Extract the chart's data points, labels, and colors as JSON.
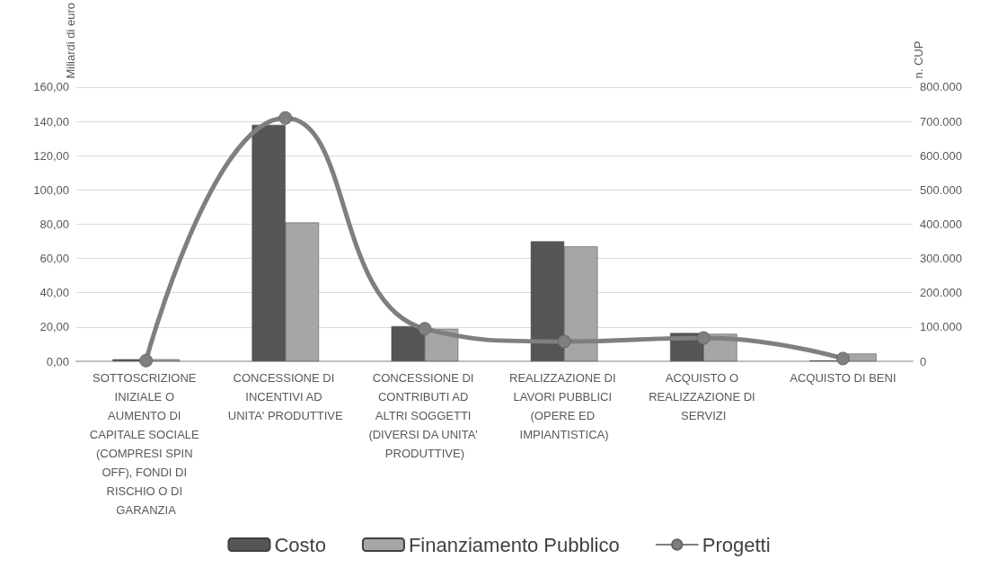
{
  "chart_data": {
    "type": "bar",
    "categories": [
      "SOTTOSCRIZIONE INIZIALE O AUMENTO DI CAPITALE SOCIALE (COMPRESI SPIN OFF), FONDI DI RISCHIO O DI GARANZIA",
      "CONCESSIONE DI INCENTIVI AD UNITA' PRODUTTIVE",
      "CONCESSIONE DI CONTRIBUTI AD ALTRI SOGGETTI (DIVERSI DA UNITA' PRODUTTIVE)",
      "REALIZZAZIONE DI LAVORI PUBBLICI (OPERE ED IMPIANTISTICA)",
      "ACQUISTO O REALIZZAZIONE DI SERVIZI",
      "ACQUISTO DI BENI"
    ],
    "series": [
      {
        "name": "Costo",
        "color": "#555555",
        "values": [
          1.2,
          138,
          20.5,
          70,
          16.5,
          0.5
        ]
      },
      {
        "name": "Finanziamento Pubblico",
        "color": "#a6a6a6",
        "values": [
          1.2,
          81,
          19,
          67,
          16,
          4.5
        ]
      },
      {
        "name": "Progetti",
        "type": "line",
        "axis": "y2",
        "color": "#7f7f7f",
        "values": [
          2000,
          710000,
          95000,
          58000,
          68000,
          8000
        ]
      }
    ],
    "ylabel": "Miliardi di euro",
    "y2label": "n. CUP",
    "ylim": [
      0,
      160
    ],
    "yticks": [
      {
        "value": 0,
        "label": "0,00"
      },
      {
        "value": 20,
        "label": "20,00"
      },
      {
        "value": 40,
        "label": "40,00"
      },
      {
        "value": 60,
        "label": "60,00"
      },
      {
        "value": 80,
        "label": "80,00"
      },
      {
        "value": 100,
        "label": "100,00"
      },
      {
        "value": 120,
        "label": "120,00"
      },
      {
        "value": 140,
        "label": "140,00"
      },
      {
        "value": 160,
        "label": "160,00"
      }
    ],
    "y2lim": [
      0,
      800000
    ],
    "y2ticks": [
      0,
      {
        "value": 100000,
        "label": "100.000"
      },
      {
        "value": 200000,
        "label": "200.000"
      },
      {
        "value": 300000,
        "label": "300.000"
      },
      {
        "value": 400000,
        "label": "400.000"
      },
      {
        "value": 500000,
        "label": "500.000"
      },
      {
        "value": 600000,
        "label": "600.000"
      },
      {
        "value": 700000,
        "label": "700.000"
      },
      {
        "value": 800000,
        "label": "800.000"
      }
    ],
    "grid": "y",
    "legend": "bottom",
    "marker": "circle"
  }
}
